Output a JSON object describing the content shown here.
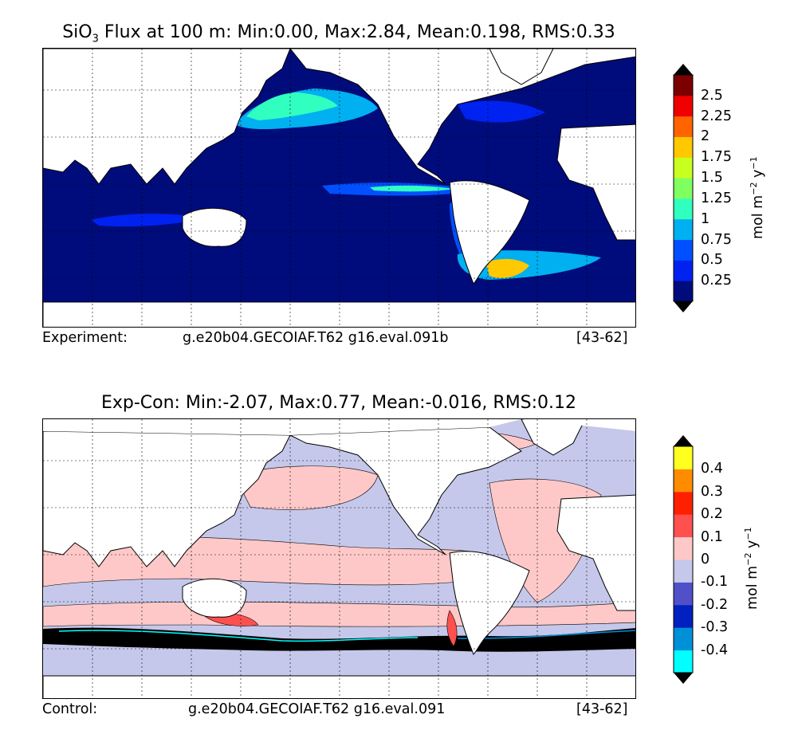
{
  "panel1": {
    "title_prefix": "SiO",
    "title_sub": "3",
    "title_rest": " Flux at 100 m: Min:0.00, Max:2.84, Mean:0.198, RMS:0.33",
    "caption_left": "Experiment:",
    "caption_mid": "g.e20b04.GECOIAF.T62 g16.eval.091b",
    "caption_right": "[43-62]",
    "colorbar": {
      "levels": [
        "0.25",
        "0.5",
        "0.75",
        "1",
        "1.25",
        "1.5",
        "1.75",
        "2",
        "2.25",
        "2.5"
      ],
      "colors": [
        "#000c7c",
        "#0022f0",
        "#0050ff",
        "#00b0f0",
        "#30ffc0",
        "#80ff60",
        "#c8ff20",
        "#ffc800",
        "#ff6400",
        "#f00000",
        "#7c0000"
      ],
      "under_color": "#000c7c",
      "over_color": "#800000",
      "units_a": "mol m",
      "units_exp1": "−2",
      "units_b": " y",
      "units_exp2": "−1"
    }
  },
  "panel2": {
    "title": "Exp-Con: Min:-2.07, Max:0.77, Mean:-0.016, RMS:0.12",
    "caption_left": "Control:",
    "caption_mid": "g.e20b04.GECOIAF.T62 g16.eval.091",
    "caption_right": "[43-62]",
    "colorbar": {
      "levels": [
        "-0.4",
        "-0.3",
        "-0.2",
        "-0.1",
        "0",
        "0.1",
        "0.2",
        "0.3",
        "0.4"
      ],
      "colors": [
        "#00ffff",
        "#0090d8",
        "#0020c0",
        "#5050c8",
        "#c5c8ea",
        "#ffc8c8",
        "#ff5050",
        "#ff2000",
        "#ff8c00",
        "#ffff20"
      ],
      "under_color": "#00ffff",
      "over_color": "#ffff00",
      "units_a": "mol m",
      "units_exp1": "−2",
      "units_b": " y",
      "units_exp2": "−1"
    }
  }
}
